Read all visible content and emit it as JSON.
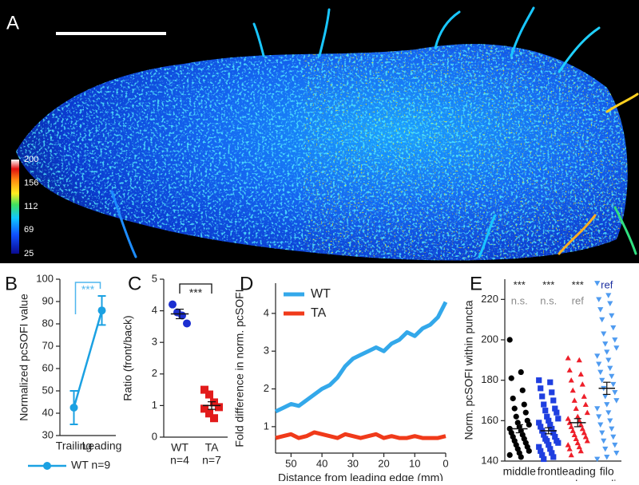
{
  "chart_data": [
    {
      "type": "image",
      "label": "A",
      "colorbar": {
        "lim": [
          25,
          200
        ],
        "ticks": [
          200,
          156,
          112,
          69,
          25
        ]
      }
    },
    {
      "type": "line",
      "label": "B",
      "ylabel": "Normalized pcSOFI value",
      "categories": [
        "Trailing",
        "Leading"
      ],
      "series": [
        {
          "name": "WT n=9",
          "color": "#1ba1e2",
          "values": [
            42.5,
            86
          ],
          "errors": [
            7.5,
            6.5
          ]
        }
      ],
      "significance": "***",
      "significance_color": "#4fb6ee",
      "ylim": [
        30,
        100
      ],
      "yticks": [
        30,
        40,
        50,
        60,
        70,
        80,
        90,
        100
      ],
      "legend": "bottom"
    },
    {
      "type": "strip",
      "label": "C",
      "ylabel": "Ratio (front/back)",
      "categories": [
        [
          "WT",
          "n=4"
        ],
        [
          "TA",
          "n=7"
        ]
      ],
      "groups": [
        {
          "color": "#1c2fd1",
          "marker": "circle",
          "points": [
            4.2,
            3.95,
            3.85,
            3.6
          ],
          "mean": 3.9,
          "sem": 0.15
        },
        {
          "color": "#e21b1b",
          "marker": "square",
          "points": [
            1.5,
            1.35,
            1.1,
            0.95,
            0.9,
            0.75,
            0.6
          ],
          "mean": 1.0,
          "sem": 0.12
        }
      ],
      "significance": "***",
      "ylim": [
        0,
        5
      ],
      "yticks": [
        0,
        1,
        2,
        3,
        4,
        5
      ]
    },
    {
      "type": "line",
      "label": "D",
      "ylabel": "Fold difference in norm. pcSOFI",
      "xlabel": "Distance from leading edge (mm)",
      "x": [
        55,
        52.5,
        50,
        47.5,
        45,
        42.5,
        40,
        37.5,
        35,
        32.5,
        30,
        27.5,
        25,
        22.5,
        20,
        17.5,
        15,
        12.5,
        10,
        7.5,
        5,
        2.5,
        0
      ],
      "series": [
        {
          "name": "WT",
          "color": "#33a8ea",
          "values": [
            1.4,
            1.5,
            1.6,
            1.55,
            1.7,
            1.85,
            2.0,
            2.1,
            2.3,
            2.6,
            2.8,
            2.9,
            3.0,
            3.1,
            3.0,
            3.2,
            3.3,
            3.5,
            3.4,
            3.6,
            3.7,
            3.9,
            4.3
          ]
        },
        {
          "name": "TA",
          "color": "#f03a1a",
          "values": [
            0.7,
            0.75,
            0.8,
            0.7,
            0.75,
            0.85,
            0.8,
            0.75,
            0.7,
            0.8,
            0.75,
            0.7,
            0.75,
            0.8,
            0.7,
            0.75,
            0.7,
            0.7,
            0.75,
            0.7,
            0.7,
            0.7,
            0.75
          ]
        }
      ],
      "xlim": [
        55,
        0
      ],
      "xticks": [
        50,
        40,
        30,
        20,
        10,
        0
      ],
      "ylim": [
        0.3,
        4.8
      ],
      "yticks": [
        1,
        2,
        3,
        4
      ],
      "legend": "upper left"
    },
    {
      "type": "strip",
      "label": "E",
      "ylabel": "Norm. pcSOFI within puncta",
      "categories": [
        [
          "middle"
        ],
        [
          "front"
        ],
        [
          "leading",
          "edge"
        ],
        [
          "filo",
          "-podia"
        ]
      ],
      "groups": [
        {
          "color": "#000000",
          "marker": "circle",
          "points": [
            200,
            184,
            181,
            175,
            171,
            168,
            166,
            164,
            162,
            160,
            159,
            158,
            157,
            156,
            155,
            154,
            153,
            152,
            151,
            150,
            149,
            148,
            147,
            146,
            145,
            144,
            143,
            142
          ],
          "mean": 156,
          "sem": 2
        },
        {
          "color": "#1f3fe0",
          "marker": "square",
          "points": [
            180,
            179,
            176,
            174,
            172,
            170,
            168,
            166,
            165,
            164,
            162,
            161,
            160,
            159,
            158,
            157,
            156,
            155,
            154,
            153,
            152,
            151,
            150,
            150,
            149,
            148,
            147,
            146,
            145,
            144,
            143,
            142,
            141
          ],
          "mean": 155,
          "sem": 1.5
        },
        {
          "color": "#ee1f2a",
          "marker": "triangle",
          "points": [
            191,
            190,
            185,
            183,
            180,
            178,
            175,
            172,
            170,
            168,
            166,
            164,
            162,
            161,
            160,
            159,
            158,
            157,
            156,
            155,
            154,
            153,
            152,
            151,
            150,
            149,
            148,
            147,
            146,
            145,
            143
          ],
          "mean": 159,
          "sem": 2
        },
        {
          "color": "#4f9bf0",
          "marker": "triangle-down",
          "points": [
            228,
            222,
            220,
            218,
            215,
            212,
            210,
            206,
            203,
            200,
            198,
            196,
            194,
            192,
            190,
            188,
            186,
            184,
            182,
            180,
            178,
            176,
            174,
            172,
            170,
            168,
            166,
            164,
            162,
            160,
            158,
            156,
            154,
            152,
            150,
            148,
            146,
            144,
            142,
            141
          ],
          "mean": 176,
          "sem": 3
        }
      ],
      "annotations": [
        {
          "texts": [
            "***",
            "***",
            "***",
            "ref"
          ],
          "colors": [
            "#222222",
            "#222222",
            "#222222",
            "#1c2fa0"
          ]
        },
        {
          "texts": [
            "n.s.",
            "n.s.",
            "ref"
          ],
          "colors": [
            "#8a8a8a",
            "#8a8a8a",
            "#8a8a8a"
          ]
        }
      ],
      "ylim": [
        140,
        230
      ],
      "yticks": [
        140,
        160,
        180,
        200,
        220
      ]
    }
  ]
}
